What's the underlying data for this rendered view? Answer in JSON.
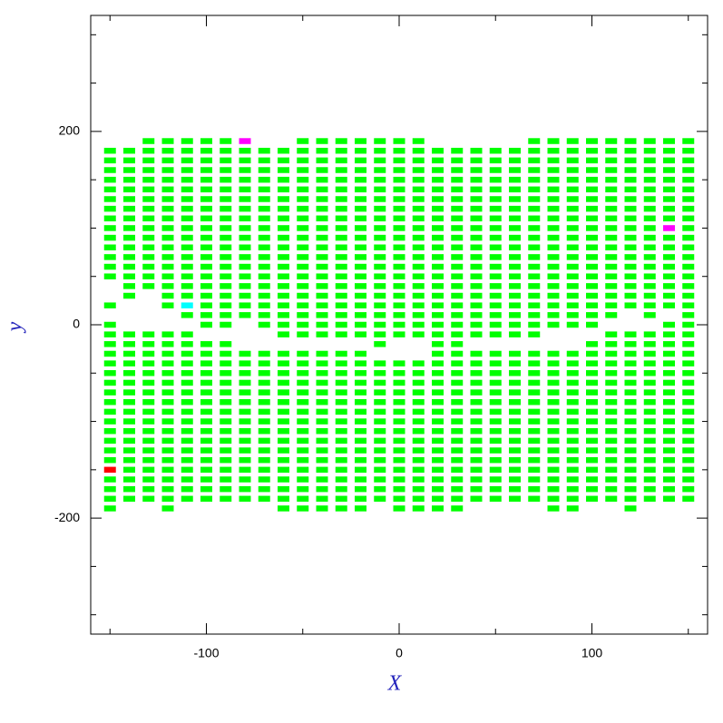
{
  "chart_data": {
    "type": "cells",
    "x_label": "X",
    "y_label": "y",
    "color": "#00ff00",
    "xlim": [
      -160,
      160
    ],
    "ylim": [
      -320,
      320
    ],
    "xticks": [
      -100,
      0,
      100
    ],
    "xminorticks": [
      -150,
      -50,
      50,
      150
    ],
    "yticks": [
      -200,
      0,
      200
    ],
    "yminorticks": [
      -300,
      -250,
      -150,
      -100,
      -50,
      50,
      100,
      150,
      250,
      300
    ],
    "columns": [
      {
        "x": -150,
        "y": [
          180,
          170,
          160,
          150,
          140,
          130,
          120,
          110,
          100,
          90,
          80,
          70,
          60,
          50,
          20,
          0,
          -10,
          -20,
          -30,
          -40,
          -50,
          -60,
          -70,
          -80,
          -90,
          -100,
          -110,
          -120,
          -130,
          -140,
          -160,
          -170,
          -180,
          -190
        ]
      },
      {
        "x": -140,
        "y": [
          180,
          170,
          160,
          150,
          140,
          130,
          120,
          110,
          100,
          90,
          80,
          70,
          60,
          50,
          40,
          30,
          -10,
          -20,
          -30,
          -40,
          -50,
          -60,
          -70,
          -80,
          -90,
          -100,
          -110,
          -120,
          -130,
          -140,
          -150,
          -160,
          -170,
          -180
        ]
      },
      {
        "x": -130,
        "y": [
          190,
          180,
          170,
          160,
          150,
          140,
          130,
          120,
          110,
          100,
          90,
          80,
          70,
          60,
          50,
          40,
          -10,
          -20,
          -30,
          -40,
          -50,
          -60,
          -70,
          -80,
          -90,
          -100,
          -110,
          -120,
          -130,
          -140,
          -150,
          -160,
          -170,
          -180
        ]
      },
      {
        "x": -120,
        "y": [
          190,
          180,
          170,
          160,
          150,
          140,
          130,
          120,
          110,
          100,
          90,
          80,
          70,
          60,
          50,
          40,
          30,
          20,
          -10,
          -20,
          -30,
          -40,
          -50,
          -60,
          -70,
          -80,
          -90,
          -100,
          -110,
          -120,
          -130,
          -140,
          -150,
          -160,
          -170,
          -180,
          -190
        ]
      },
      {
        "x": -110,
        "y": [
          190,
          180,
          170,
          160,
          150,
          140,
          130,
          120,
          110,
          100,
          90,
          80,
          70,
          60,
          50,
          40,
          30,
          10,
          -10,
          -20,
          -30,
          -40,
          -50,
          -60,
          -70,
          -80,
          -90,
          -100,
          -110,
          -120,
          -130,
          -140,
          -150,
          -160,
          -170,
          -180
        ]
      },
      {
        "x": -100,
        "y": [
          190,
          180,
          170,
          160,
          150,
          140,
          130,
          120,
          110,
          100,
          90,
          80,
          70,
          60,
          50,
          40,
          30,
          20,
          10,
          0,
          -20,
          -30,
          -40,
          -50,
          -60,
          -70,
          -80,
          -90,
          -100,
          -110,
          -120,
          -130,
          -140,
          -150,
          -160,
          -170,
          -180
        ]
      },
      {
        "x": -90,
        "y": [
          190,
          180,
          170,
          160,
          150,
          140,
          130,
          120,
          110,
          100,
          90,
          80,
          70,
          60,
          50,
          40,
          30,
          20,
          10,
          0,
          -20,
          -30,
          -40,
          -50,
          -60,
          -70,
          -80,
          -90,
          -100,
          -110,
          -120,
          -130,
          -140,
          -150,
          -160,
          -170,
          -180
        ]
      },
      {
        "x": -80,
        "y": [
          180,
          170,
          160,
          150,
          140,
          130,
          120,
          110,
          100,
          90,
          80,
          70,
          60,
          50,
          40,
          30,
          20,
          10,
          -30,
          -40,
          -50,
          -60,
          -70,
          -80,
          -90,
          -100,
          -110,
          -120,
          -130,
          -140,
          -150,
          -160,
          -170,
          -180
        ]
      },
      {
        "x": -70,
        "y": [
          180,
          170,
          160,
          150,
          140,
          130,
          120,
          110,
          100,
          90,
          80,
          70,
          60,
          50,
          40,
          30,
          20,
          10,
          0,
          -30,
          -40,
          -50,
          -60,
          -70,
          -80,
          -90,
          -100,
          -110,
          -120,
          -130,
          -140,
          -150,
          -160,
          -170,
          -180
        ]
      },
      {
        "x": -60,
        "y": [
          180,
          170,
          160,
          150,
          140,
          130,
          120,
          110,
          100,
          90,
          80,
          70,
          60,
          50,
          40,
          30,
          20,
          10,
          0,
          -10,
          -30,
          -40,
          -50,
          -60,
          -70,
          -80,
          -90,
          -100,
          -110,
          -120,
          -130,
          -140,
          -150,
          -160,
          -170,
          -180,
          -190
        ]
      },
      {
        "x": -50,
        "y": [
          190,
          180,
          170,
          160,
          150,
          140,
          130,
          120,
          110,
          100,
          90,
          80,
          70,
          60,
          50,
          40,
          30,
          20,
          10,
          0,
          -10,
          -30,
          -40,
          -50,
          -60,
          -70,
          -80,
          -90,
          -100,
          -110,
          -120,
          -130,
          -140,
          -150,
          -160,
          -170,
          -180,
          -190
        ]
      },
      {
        "x": -40,
        "y": [
          190,
          180,
          170,
          160,
          150,
          140,
          130,
          120,
          110,
          100,
          90,
          80,
          70,
          60,
          50,
          40,
          30,
          20,
          10,
          0,
          -10,
          -30,
          -40,
          -50,
          -60,
          -70,
          -80,
          -90,
          -100,
          -110,
          -120,
          -130,
          -140,
          -150,
          -160,
          -170,
          -180,
          -190
        ]
      },
      {
        "x": -30,
        "y": [
          190,
          180,
          170,
          160,
          150,
          140,
          130,
          120,
          110,
          100,
          90,
          80,
          70,
          60,
          50,
          40,
          30,
          20,
          10,
          0,
          -10,
          -30,
          -40,
          -50,
          -60,
          -70,
          -80,
          -90,
          -100,
          -110,
          -120,
          -130,
          -140,
          -150,
          -160,
          -170,
          -180,
          -190
        ]
      },
      {
        "x": -20,
        "y": [
          190,
          180,
          170,
          160,
          150,
          140,
          130,
          120,
          110,
          100,
          90,
          80,
          70,
          60,
          50,
          40,
          30,
          20,
          10,
          0,
          -10,
          -30,
          -40,
          -50,
          -60,
          -70,
          -80,
          -90,
          -100,
          -110,
          -120,
          -130,
          -140,
          -150,
          -160,
          -170,
          -180,
          -190
        ]
      },
      {
        "x": -10,
        "y": [
          190,
          180,
          170,
          160,
          150,
          140,
          130,
          120,
          110,
          100,
          90,
          80,
          70,
          60,
          50,
          40,
          30,
          20,
          10,
          0,
          -10,
          -20,
          -40,
          -50,
          -60,
          -70,
          -80,
          -90,
          -100,
          -110,
          -120,
          -130,
          -140,
          -150,
          -160,
          -170,
          -180
        ]
      },
      {
        "x": 0,
        "y": [
          190,
          180,
          170,
          160,
          150,
          140,
          130,
          120,
          110,
          100,
          90,
          80,
          70,
          60,
          50,
          40,
          30,
          20,
          10,
          0,
          -10,
          -40,
          -50,
          -60,
          -70,
          -80,
          -90,
          -100,
          -110,
          -120,
          -130,
          -140,
          -150,
          -160,
          -170,
          -180,
          -190
        ]
      },
      {
        "x": 10,
        "y": [
          190,
          180,
          170,
          160,
          150,
          140,
          130,
          120,
          110,
          100,
          90,
          80,
          70,
          60,
          50,
          40,
          30,
          20,
          10,
          0,
          -10,
          -40,
          -50,
          -60,
          -70,
          -80,
          -90,
          -100,
          -110,
          -120,
          -130,
          -140,
          -150,
          -160,
          -170,
          -180,
          -190
        ]
      },
      {
        "x": 20,
        "y": [
          180,
          170,
          160,
          150,
          140,
          130,
          120,
          110,
          100,
          90,
          80,
          70,
          60,
          50,
          40,
          30,
          20,
          10,
          0,
          -10,
          -20,
          -30,
          -40,
          -50,
          -60,
          -70,
          -80,
          -90,
          -100,
          -110,
          -120,
          -130,
          -140,
          -150,
          -160,
          -170,
          -180,
          -190
        ]
      },
      {
        "x": 30,
        "y": [
          180,
          170,
          160,
          150,
          140,
          130,
          120,
          110,
          100,
          90,
          80,
          70,
          60,
          50,
          40,
          30,
          20,
          10,
          0,
          -10,
          -20,
          -30,
          -40,
          -50,
          -60,
          -70,
          -80,
          -90,
          -100,
          -110,
          -120,
          -130,
          -140,
          -150,
          -160,
          -170,
          -180,
          -190
        ]
      },
      {
        "x": 40,
        "y": [
          180,
          170,
          160,
          150,
          140,
          130,
          120,
          110,
          100,
          90,
          80,
          70,
          60,
          50,
          40,
          30,
          20,
          10,
          0,
          -10,
          -30,
          -40,
          -50,
          -60,
          -70,
          -80,
          -90,
          -100,
          -110,
          -120,
          -130,
          -140,
          -150,
          -160,
          -170,
          -180
        ]
      },
      {
        "x": 50,
        "y": [
          180,
          170,
          160,
          150,
          140,
          130,
          120,
          110,
          100,
          90,
          80,
          70,
          60,
          50,
          40,
          30,
          20,
          10,
          0,
          -10,
          -30,
          -40,
          -50,
          -60,
          -70,
          -80,
          -90,
          -100,
          -110,
          -120,
          -130,
          -140,
          -150,
          -160,
          -170,
          -180
        ]
      },
      {
        "x": 60,
        "y": [
          180,
          170,
          160,
          150,
          140,
          130,
          120,
          110,
          100,
          90,
          80,
          70,
          60,
          50,
          40,
          30,
          20,
          10,
          0,
          -10,
          -30,
          -40,
          -50,
          -60,
          -70,
          -80,
          -90,
          -100,
          -110,
          -120,
          -130,
          -140,
          -150,
          -160,
          -170,
          -180
        ]
      },
      {
        "x": 70,
        "y": [
          190,
          180,
          170,
          160,
          150,
          140,
          130,
          120,
          110,
          100,
          90,
          80,
          70,
          60,
          50,
          40,
          30,
          20,
          10,
          0,
          -10,
          -30,
          -40,
          -50,
          -60,
          -70,
          -80,
          -90,
          -100,
          -110,
          -120,
          -130,
          -140,
          -150,
          -160,
          -170,
          -180
        ]
      },
      {
        "x": 80,
        "y": [
          190,
          180,
          170,
          160,
          150,
          140,
          130,
          120,
          110,
          100,
          90,
          80,
          70,
          60,
          50,
          40,
          30,
          20,
          10,
          0,
          -30,
          -40,
          -50,
          -60,
          -70,
          -80,
          -90,
          -100,
          -110,
          -120,
          -130,
          -140,
          -150,
          -160,
          -170,
          -180,
          -190
        ]
      },
      {
        "x": 90,
        "y": [
          190,
          180,
          170,
          160,
          150,
          140,
          130,
          120,
          110,
          100,
          90,
          80,
          70,
          60,
          50,
          40,
          30,
          20,
          10,
          0,
          -30,
          -40,
          -50,
          -60,
          -70,
          -80,
          -90,
          -100,
          -110,
          -120,
          -130,
          -140,
          -150,
          -160,
          -170,
          -180,
          -190
        ]
      },
      {
        "x": 100,
        "y": [
          190,
          180,
          170,
          160,
          150,
          140,
          130,
          120,
          110,
          100,
          90,
          80,
          70,
          60,
          50,
          40,
          30,
          20,
          10,
          0,
          -20,
          -30,
          -40,
          -50,
          -60,
          -70,
          -80,
          -90,
          -100,
          -110,
          -120,
          -130,
          -140,
          -150,
          -160,
          -170,
          -180
        ]
      },
      {
        "x": 110,
        "y": [
          190,
          180,
          170,
          160,
          150,
          140,
          130,
          120,
          110,
          100,
          90,
          80,
          70,
          60,
          50,
          40,
          30,
          20,
          10,
          -10,
          -20,
          -30,
          -40,
          -50,
          -60,
          -70,
          -80,
          -90,
          -100,
          -110,
          -120,
          -130,
          -140,
          -150,
          -160,
          -170,
          -180
        ]
      },
      {
        "x": 120,
        "y": [
          190,
          180,
          170,
          160,
          150,
          140,
          130,
          120,
          110,
          100,
          90,
          80,
          70,
          60,
          50,
          40,
          30,
          20,
          -10,
          -20,
          -30,
          -40,
          -50,
          -60,
          -70,
          -80,
          -90,
          -100,
          -110,
          -120,
          -130,
          -140,
          -150,
          -160,
          -170,
          -180,
          -190
        ]
      },
      {
        "x": 130,
        "y": [
          190,
          180,
          170,
          160,
          150,
          140,
          130,
          120,
          110,
          100,
          90,
          80,
          70,
          60,
          50,
          40,
          30,
          20,
          10,
          -10,
          -20,
          -30,
          -40,
          -50,
          -60,
          -70,
          -80,
          -90,
          -100,
          -110,
          -120,
          -130,
          -140,
          -150,
          -160,
          -170,
          -180
        ]
      },
      {
        "x": 140,
        "y": [
          190,
          180,
          170,
          160,
          150,
          140,
          130,
          120,
          110,
          90,
          80,
          70,
          60,
          50,
          40,
          30,
          20,
          0,
          -10,
          -20,
          -30,
          -40,
          -50,
          -60,
          -70,
          -80,
          -90,
          -100,
          -110,
          -120,
          -130,
          -140,
          -150,
          -160,
          -170,
          -180
        ]
      },
      {
        "x": 150,
        "y": [
          190,
          180,
          170,
          160,
          150,
          140,
          130,
          120,
          110,
          100,
          90,
          80,
          70,
          60,
          50,
          40,
          30,
          20,
          10,
          0,
          -10,
          -20,
          -30,
          -40,
          -50,
          -60,
          -70,
          -80,
          -90,
          -100,
          -110,
          -120,
          -130,
          -140,
          -150,
          -160,
          -170,
          -180
        ]
      }
    ],
    "highlights": [
      {
        "x": -80,
        "y": 190,
        "color": "#ff00ff"
      },
      {
        "x": 140,
        "y": 100,
        "color": "#ff00ff"
      },
      {
        "x": -110,
        "y": 20,
        "color": "#00ffff"
      },
      {
        "x": -150,
        "y": -150,
        "color": "#ff0000"
      }
    ]
  }
}
